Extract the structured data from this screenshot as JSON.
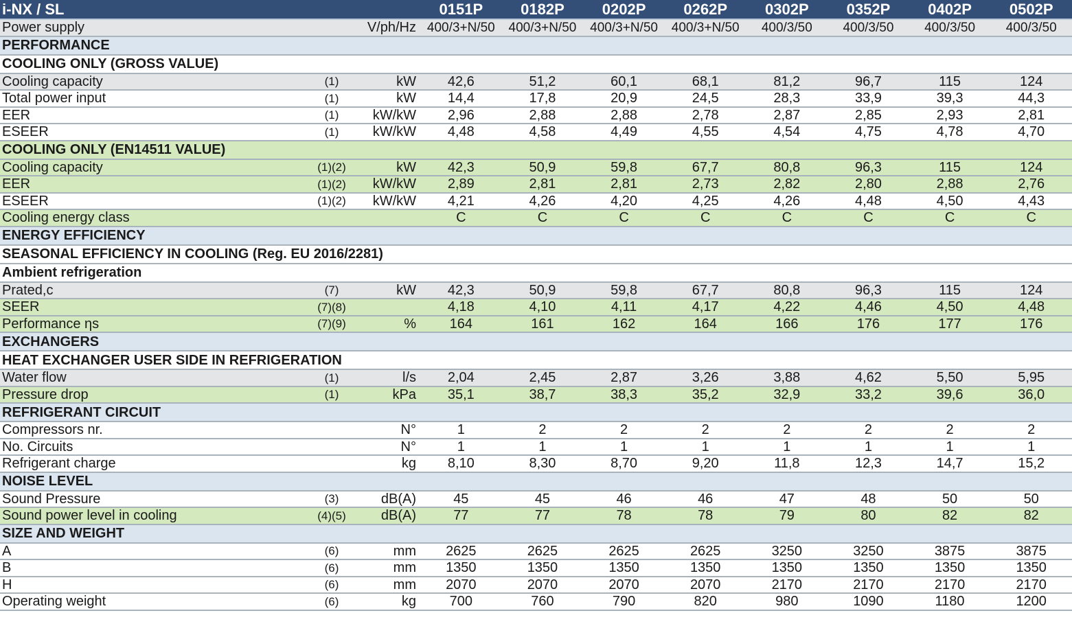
{
  "table": {
    "title": "i-NX / SL",
    "models": [
      "0151P",
      "0182P",
      "0202P",
      "0262P",
      "0302P",
      "0352P",
      "0402P",
      "0502P"
    ],
    "rows": [
      {
        "kind": "data",
        "bg": "grey",
        "label": "Power supply",
        "note": "",
        "unit": "V/ph/Hz",
        "values": [
          "400/3+N/50",
          "400/3+N/50",
          "400/3+N/50",
          "400/3+N/50",
          "400/3/50",
          "400/3/50",
          "400/3/50",
          "400/3/50"
        ]
      },
      {
        "kind": "section",
        "bg": "blue",
        "label": "PERFORMANCE"
      },
      {
        "kind": "subsection",
        "bg": "white",
        "label": "COOLING ONLY (GROSS VALUE)"
      },
      {
        "kind": "data",
        "bg": "grey",
        "label": "Cooling capacity",
        "note": "(1)",
        "unit": "kW",
        "values": [
          "42,6",
          "51,2",
          "60,1",
          "68,1",
          "81,2",
          "96,7",
          "115",
          "124"
        ]
      },
      {
        "kind": "data",
        "bg": "white",
        "label": "Total power input",
        "note": "(1)",
        "unit": "kW",
        "values": [
          "14,4",
          "17,8",
          "20,9",
          "24,5",
          "28,3",
          "33,9",
          "39,3",
          "44,3"
        ]
      },
      {
        "kind": "data",
        "bg": "white",
        "label": "EER",
        "note": "(1)",
        "unit": "kW/kW",
        "values": [
          "2,96",
          "2,88",
          "2,88",
          "2,78",
          "2,87",
          "2,85",
          "2,93",
          "2,81"
        ]
      },
      {
        "kind": "data",
        "bg": "white",
        "label": "ESEER",
        "note": "(1)",
        "unit": "kW/kW",
        "values": [
          "4,48",
          "4,58",
          "4,49",
          "4,55",
          "4,54",
          "4,75",
          "4,78",
          "4,70"
        ]
      },
      {
        "kind": "subsection",
        "bg": "green",
        "label": "COOLING ONLY (EN14511 VALUE)"
      },
      {
        "kind": "data",
        "bg": "green",
        "label": "Cooling capacity",
        "note": "(1)(2)",
        "unit": "kW",
        "values": [
          "42,3",
          "50,9",
          "59,8",
          "67,7",
          "80,8",
          "96,3",
          "115",
          "124"
        ]
      },
      {
        "kind": "data",
        "bg": "green",
        "label": "EER",
        "note": "(1)(2)",
        "unit": "kW/kW",
        "values": [
          "2,89",
          "2,81",
          "2,81",
          "2,73",
          "2,82",
          "2,80",
          "2,88",
          "2,76"
        ]
      },
      {
        "kind": "data",
        "bg": "white",
        "label": "ESEER",
        "note": "(1)(2)",
        "unit": "kW/kW",
        "values": [
          "4,21",
          "4,26",
          "4,20",
          "4,25",
          "4,26",
          "4,48",
          "4,50",
          "4,43"
        ]
      },
      {
        "kind": "data",
        "bg": "green",
        "label": "Cooling  energy class",
        "note": "",
        "unit": "",
        "values": [
          "C",
          "C",
          "C",
          "C",
          "C",
          "C",
          "C",
          "C"
        ]
      },
      {
        "kind": "section",
        "bg": "blue",
        "label": "ENERGY EFFICIENCY"
      },
      {
        "kind": "subsection",
        "bg": "white",
        "label": "SEASONAL EFFICIENCY IN COOLING (Reg. EU 2016/2281)"
      },
      {
        "kind": "subsection",
        "bg": "white",
        "label": "Ambient refrigeration"
      },
      {
        "kind": "data",
        "bg": "grey",
        "label": "Prated,c",
        "note": "(7)",
        "unit": "kW",
        "values": [
          "42,3",
          "50,9",
          "59,8",
          "67,7",
          "80,8",
          "96,3",
          "115",
          "124"
        ]
      },
      {
        "kind": "data",
        "bg": "green",
        "label": "SEER",
        "note": "(7)(8)",
        "unit": "",
        "values": [
          "4,18",
          "4,10",
          "4,11",
          "4,17",
          "4,22",
          "4,46",
          "4,50",
          "4,48"
        ]
      },
      {
        "kind": "data",
        "bg": "green",
        "label": "Performance ηs",
        "note": "(7)(9)",
        "unit": "%",
        "values": [
          "164",
          "161",
          "162",
          "164",
          "166",
          "176",
          "177",
          "176"
        ]
      },
      {
        "kind": "section",
        "bg": "blue",
        "label": "EXCHANGERS"
      },
      {
        "kind": "subsection",
        "bg": "white",
        "label": "HEAT EXCHANGER USER SIDE IN REFRIGERATION"
      },
      {
        "kind": "data",
        "bg": "grey",
        "label": "Water flow",
        "note": "(1)",
        "unit": "l/s",
        "values": [
          "2,04",
          "2,45",
          "2,87",
          "3,26",
          "3,88",
          "4,62",
          "5,50",
          "5,95"
        ]
      },
      {
        "kind": "data",
        "bg": "green",
        "label": "Pressure drop",
        "note": "(1)",
        "unit": "kPa",
        "values": [
          "35,1",
          "38,7",
          "38,3",
          "35,2",
          "32,9",
          "33,2",
          "39,6",
          "36,0"
        ]
      },
      {
        "kind": "section",
        "bg": "blue",
        "label": "REFRIGERANT CIRCUIT"
      },
      {
        "kind": "data",
        "bg": "white",
        "label": "Compressors nr.",
        "note": "",
        "unit": "N°",
        "values": [
          "1",
          "2",
          "2",
          "2",
          "2",
          "2",
          "2",
          "2"
        ]
      },
      {
        "kind": "data",
        "bg": "white",
        "label": "No. Circuits",
        "note": "",
        "unit": "N°",
        "values": [
          "1",
          "1",
          "1",
          "1",
          "1",
          "1",
          "1",
          "1"
        ]
      },
      {
        "kind": "data",
        "bg": "white",
        "label": "Refrigerant charge",
        "note": "",
        "unit": "kg",
        "values": [
          "8,10",
          "8,30",
          "8,70",
          "9,20",
          "11,8",
          "12,3",
          "14,7",
          "15,2"
        ]
      },
      {
        "kind": "section",
        "bg": "blue",
        "label": "NOISE LEVEL"
      },
      {
        "kind": "data",
        "bg": "white",
        "label": "Sound Pressure",
        "note": "(3)",
        "unit": "dB(A)",
        "values": [
          "45",
          "45",
          "46",
          "46",
          "47",
          "48",
          "50",
          "50"
        ]
      },
      {
        "kind": "data",
        "bg": "green",
        "label": "Sound power level in cooling",
        "note": "(4)(5)",
        "unit": "dB(A)",
        "values": [
          "77",
          "77",
          "78",
          "78",
          "79",
          "80",
          "82",
          "82"
        ]
      },
      {
        "kind": "section",
        "bg": "blue",
        "label": "SIZE AND WEIGHT"
      },
      {
        "kind": "data",
        "bg": "white",
        "label": "A",
        "note": "(6)",
        "unit": "mm",
        "values": [
          "2625",
          "2625",
          "2625",
          "2625",
          "3250",
          "3250",
          "3875",
          "3875"
        ]
      },
      {
        "kind": "data",
        "bg": "white",
        "label": "B",
        "note": "(6)",
        "unit": "mm",
        "values": [
          "1350",
          "1350",
          "1350",
          "1350",
          "1350",
          "1350",
          "1350",
          "1350"
        ]
      },
      {
        "kind": "data",
        "bg": "white",
        "label": "H",
        "note": "(6)",
        "unit": "mm",
        "values": [
          "2070",
          "2070",
          "2070",
          "2070",
          "2170",
          "2170",
          "2170",
          "2170"
        ]
      },
      {
        "kind": "data",
        "bg": "white",
        "label": "Operating weight",
        "note": "(6)",
        "unit": "kg",
        "values": [
          "700",
          "760",
          "790",
          "820",
          "980",
          "1090",
          "1180",
          "1200"
        ]
      }
    ]
  },
  "colors": {
    "header_bg": "#344f77",
    "section_bg": "#dbe5ef",
    "grey_row": "#e4e5e6",
    "green_row": "#d5e9bf",
    "divider": "#a9b3bb"
  }
}
